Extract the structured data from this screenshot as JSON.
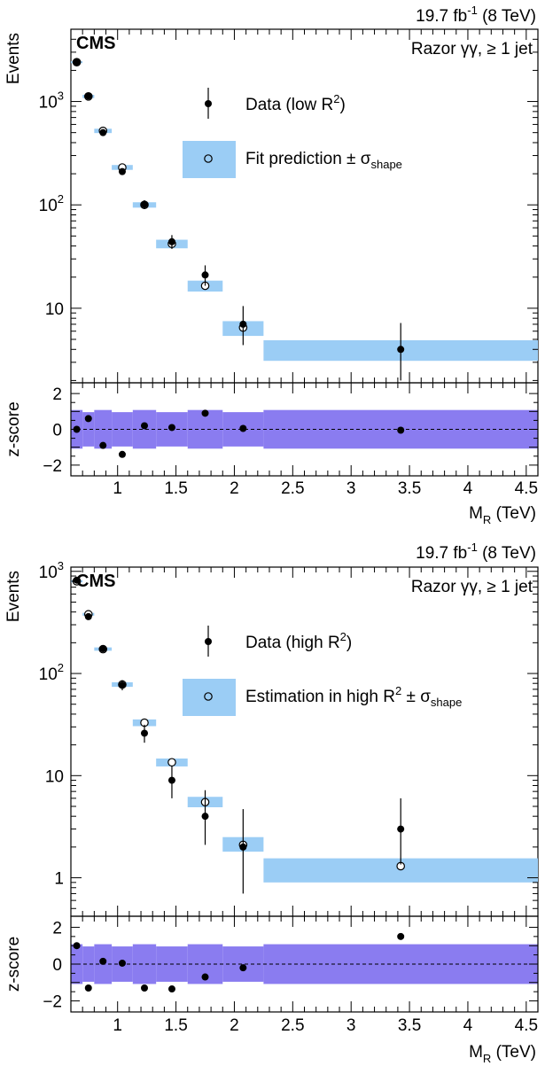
{
  "chart_data": [
    {
      "type": "scatter",
      "panel": "top",
      "title_right": "19.7 fb-1 (8 TeV)",
      "lumi": "19.7",
      "lumi_unit": "fb",
      "lumi_exp": "-1",
      "energy": "(8 TeV)",
      "experiment": "CMS",
      "label": "Razor γγ, ≥ 1 jet",
      "ylabel": "Events",
      "xlabel": "M",
      "xlabel_sub": "R",
      "xlabel_unit": "(TeV)",
      "yscale": "log",
      "xlim": [
        0.6,
        4.6
      ],
      "ylim": [
        1.9,
        5000
      ],
      "yticks": [
        {
          "v": 1000,
          "base": "10",
          "exp": "3"
        },
        {
          "v": 100,
          "base": "10",
          "exp": "2"
        },
        {
          "v": 10,
          "base": "10",
          "exp": ""
        }
      ],
      "legend": [
        {
          "text": "Data (low R",
          "sup": "2",
          "tail": ")"
        },
        {
          "text": "Fit prediction ± σ",
          "sub": "shape"
        }
      ],
      "bins": [
        {
          "lo": 0.6,
          "hi": 0.7,
          "data": 2400,
          "err_lo": 50,
          "err_hi": 50,
          "pred": 2400,
          "band_lo": 2350,
          "band_hi": 2450,
          "z": 0.0
        },
        {
          "lo": 0.7,
          "hi": 0.8,
          "data": 1130,
          "err_lo": 35,
          "err_hi": 35,
          "pred": 1120,
          "band_lo": 1080,
          "band_hi": 1160,
          "z": 0.6
        },
        {
          "lo": 0.8,
          "hi": 0.95,
          "data": 500,
          "err_lo": 22,
          "err_hi": 22,
          "pred": 520,
          "band_lo": 495,
          "band_hi": 545,
          "z": -0.9
        },
        {
          "lo": 0.95,
          "hi": 1.13,
          "data": 210,
          "err_lo": 15,
          "err_hi": 15,
          "pred": 230,
          "band_lo": 218,
          "band_hi": 243,
          "z": -1.4
        },
        {
          "lo": 1.13,
          "hi": 1.33,
          "data": 101,
          "err_lo": 10,
          "err_hi": 10,
          "pred": 100,
          "band_lo": 94,
          "band_hi": 106,
          "z": 0.2
        },
        {
          "lo": 1.33,
          "hi": 1.6,
          "data": 44,
          "err_lo": 6.5,
          "err_hi": 7,
          "pred": 42,
          "band_lo": 38,
          "band_hi": 46,
          "z": 0.1
        },
        {
          "lo": 1.6,
          "hi": 1.9,
          "data": 21,
          "err_lo": 4.5,
          "err_hi": 5,
          "pred": 16.5,
          "band_lo": 14.5,
          "band_hi": 18.5,
          "z": 0.9
        },
        {
          "lo": 1.9,
          "hi": 2.25,
          "data": 7,
          "err_lo": 2.6,
          "err_hi": 3.5,
          "pred": 6.5,
          "band_lo": 5.4,
          "band_hi": 7.5,
          "z": 0.05
        },
        {
          "lo": 2.25,
          "hi": 4.6,
          "data": 4,
          "err_lo": 2.0,
          "err_hi": 3.2,
          "pred": null,
          "band_lo": 3.1,
          "band_hi": 4.9,
          "z": -0.05
        }
      ],
      "zpanel": {
        "ylabel": "z-score",
        "ylim": [
          -2.6,
          2.6
        ],
        "yticks": [
          2,
          0,
          -2
        ],
        "band": [
          -1,
          1
        ]
      },
      "xticks": [
        1,
        1.5,
        2,
        2.5,
        3,
        3.5,
        4,
        4.5
      ],
      "xtick_labels": [
        "1",
        "1.5",
        "2",
        "2.5",
        "3",
        "3.5",
        "4",
        "4.5"
      ]
    },
    {
      "type": "scatter",
      "panel": "bottom",
      "title_right": "19.7 fb-1 (8 TeV)",
      "lumi": "19.7",
      "lumi_unit": "fb",
      "lumi_exp": "-1",
      "energy": "(8 TeV)",
      "experiment": "CMS",
      "label": "Razor γγ, ≥ 1 jet",
      "ylabel": "Events",
      "xlabel": "M",
      "xlabel_sub": "R",
      "xlabel_unit": "(TeV)",
      "yscale": "log",
      "xlim": [
        0.6,
        4.6
      ],
      "ylim": [
        0.42,
        1100
      ],
      "yticks": [
        {
          "v": 1000,
          "base": "10",
          "exp": "3"
        },
        {
          "v": 100,
          "base": "10",
          "exp": "2"
        },
        {
          "v": 10,
          "base": "10",
          "exp": ""
        },
        {
          "v": 1,
          "base": "1",
          "exp": ""
        }
      ],
      "legend": [
        {
          "text": "Data (high R",
          "sup": "2",
          "tail": ")"
        },
        {
          "text": "Estimation in high R",
          "sup": "2",
          "tail": " ± σ",
          "sub": "shape"
        }
      ],
      "bins": [
        {
          "lo": 0.6,
          "hi": 0.7,
          "data": 820,
          "err_lo": 28,
          "err_hi": 28,
          "pred": 800,
          "band_lo": 780,
          "band_hi": 820,
          "z": 1.0
        },
        {
          "lo": 0.7,
          "hi": 0.8,
          "data": 360,
          "err_lo": 19,
          "err_hi": 19,
          "pred": 380,
          "band_lo": 368,
          "band_hi": 392,
          "z": -1.3
        },
        {
          "lo": 0.8,
          "hi": 0.95,
          "data": 175,
          "err_lo": 13,
          "err_hi": 13,
          "pred": 173,
          "band_lo": 167,
          "band_hi": 180,
          "z": 0.15
        },
        {
          "lo": 0.95,
          "hi": 1.13,
          "data": 77,
          "err_lo": 8.5,
          "err_hi": 9,
          "pred": 78,
          "band_lo": 74,
          "band_hi": 82,
          "z": 0.05
        },
        {
          "lo": 1.13,
          "hi": 1.33,
          "data": 26,
          "err_lo": 5,
          "err_hi": 5.5,
          "pred": 33,
          "band_lo": 30.5,
          "band_hi": 35.5,
          "z": -1.3
        },
        {
          "lo": 1.33,
          "hi": 1.6,
          "data": 9,
          "err_lo": 3,
          "err_hi": 3.5,
          "pred": 13.5,
          "band_lo": 12.3,
          "band_hi": 14.7,
          "z": -1.35
        },
        {
          "lo": 1.6,
          "hi": 1.9,
          "data": 4,
          "err_lo": 1.9,
          "err_hi": 3.2,
          "pred": 5.5,
          "band_lo": 4.9,
          "band_hi": 6.2,
          "z": -0.7
        },
        {
          "lo": 1.9,
          "hi": 2.25,
          "data": 2,
          "err_lo": 1.3,
          "err_hi": 2.7,
          "pred": 2.1,
          "band_lo": 1.8,
          "band_hi": 2.5,
          "z": -0.2
        },
        {
          "lo": 2.25,
          "hi": 4.6,
          "data": 3,
          "err_lo": 1.65,
          "err_hi": 3.0,
          "pred": 1.3,
          "band_lo": 0.9,
          "band_hi": 1.55,
          "z": 1.5
        }
      ],
      "zpanel": {
        "ylabel": "z-score",
        "ylim": [
          -2.6,
          2.6
        ],
        "yticks": [
          2,
          0,
          -2
        ],
        "band": [
          -1,
          1
        ]
      },
      "xticks": [
        1,
        1.5,
        2,
        2.5,
        3,
        3.5,
        4,
        4.5
      ],
      "xtick_labels": [
        "1",
        "1.5",
        "2",
        "2.5",
        "3",
        "3.5",
        "4",
        "4.5"
      ]
    }
  ],
  "colors": {
    "band": "#9bcdf5",
    "zband": "#8a7cf0",
    "marker": "#000000"
  }
}
